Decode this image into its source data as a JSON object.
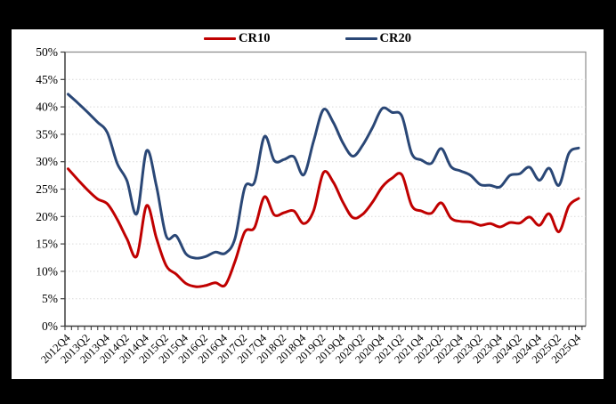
{
  "chart": {
    "panel_background": "#ffffff",
    "outer_background": "#000000",
    "axis_color": "#3f3f3f",
    "border_color": "#8c8c8c",
    "grid_color": "#d9d9d9"
  },
  "chart_data": {
    "type": "line",
    "title": "",
    "xlabel": "",
    "ylabel": "",
    "ylim": [
      0,
      50
    ],
    "y_tick_step": 5,
    "y_tick_labels": [
      "0%",
      "5%",
      "10%",
      "15%",
      "20%",
      "25%",
      "30%",
      "35%",
      "40%",
      "45%",
      "50%"
    ],
    "grid": "horizontal-dotted",
    "legend_position": "top-center",
    "x_tick_labels": [
      "2012Q4",
      "2013Q2",
      "2013Q4",
      "2014Q2",
      "2014Q4",
      "2015Q2",
      "2015Q4",
      "2016Q2",
      "2016Q4",
      "2017Q2",
      "2017Q4",
      "2018Q2",
      "2018Q4",
      "2019Q2",
      "2019Q4",
      "2020Q2",
      "2020Q4",
      "2021Q2",
      "2021Q4",
      "2022Q2",
      "2022Q4",
      "2023Q2",
      "2023Q4",
      "2024Q2",
      "2024Q4",
      "2025Q2",
      "2025Q4"
    ],
    "categories": [
      "2012Q4",
      "2013Q1",
      "2013Q2",
      "2013Q3",
      "2013Q4",
      "2014Q1",
      "2014Q2",
      "2014Q3",
      "2014Q4",
      "2015Q1",
      "2015Q2",
      "2015Q3",
      "2015Q4",
      "2016Q1",
      "2016Q2",
      "2016Q3",
      "2016Q4",
      "2017Q1",
      "2017Q2",
      "2017Q3",
      "2017Q4",
      "2018Q1",
      "2018Q2",
      "2018Q3",
      "2018Q4",
      "2019Q1",
      "2019Q2",
      "2019Q3",
      "2019Q4",
      "2020Q1",
      "2020Q2",
      "2020Q3",
      "2020Q4",
      "2021Q1",
      "2021Q2",
      "2021Q3",
      "2021Q4",
      "2022Q1",
      "2022Q2",
      "2022Q3",
      "2022Q4",
      "2023Q1",
      "2023Q2",
      "2023Q3",
      "2023Q4",
      "2024Q1",
      "2024Q2",
      "2024Q3",
      "2024Q4",
      "2025Q1",
      "2025Q2",
      "2025Q3",
      "2025Q4"
    ],
    "series": [
      {
        "name": "CR10",
        "color": "#C00000",
        "values": [
          28.7,
          26.7,
          24.8,
          23.2,
          22.3,
          19.5,
          15.9,
          12.8,
          22.0,
          16.0,
          11.0,
          9.5,
          7.8,
          7.2,
          7.4,
          7.9,
          7.5,
          11.8,
          17.2,
          18.0,
          23.6,
          20.3,
          20.7,
          21.0,
          18.7,
          21.0,
          28.0,
          26.3,
          22.6,
          19.8,
          20.4,
          22.6,
          25.4,
          27.0,
          27.6,
          22.0,
          21.0,
          20.6,
          22.5,
          19.7,
          19.1,
          19.0,
          18.4,
          18.7,
          18.1,
          18.9,
          18.8,
          19.9,
          18.4,
          20.5,
          17.2,
          21.9,
          23.3
        ]
      },
      {
        "name": "CR20",
        "color": "#2A4776",
        "values": [
          42.3,
          40.7,
          39.0,
          37.2,
          35.3,
          29.7,
          26.5,
          20.5,
          32.0,
          25.5,
          16.4,
          16.5,
          13.2,
          12.4,
          12.7,
          13.5,
          13.3,
          16.0,
          25.3,
          26.3,
          34.6,
          30.2,
          30.4,
          30.9,
          27.6,
          33.7,
          39.5,
          37.2,
          33.4,
          31.0,
          33.0,
          36.2,
          39.7,
          39.0,
          38.3,
          31.5,
          30.3,
          29.7,
          32.4,
          29.1,
          28.3,
          27.5,
          25.8,
          25.7,
          25.4,
          27.5,
          27.8,
          29.0,
          26.6,
          28.8,
          25.7,
          31.5,
          32.5
        ]
      }
    ]
  }
}
